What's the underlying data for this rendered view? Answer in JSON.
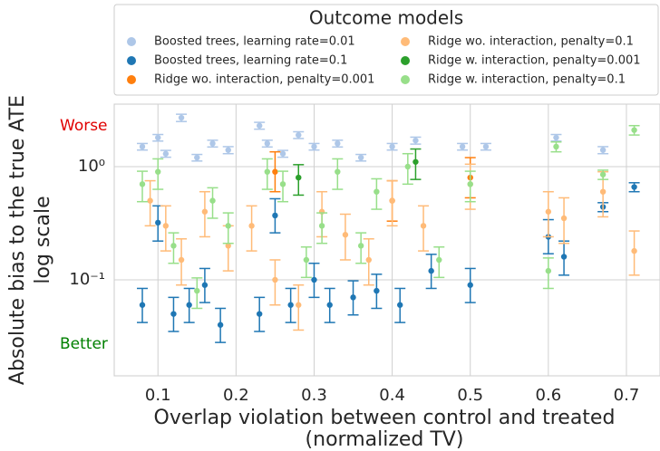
{
  "chart_data": {
    "type": "scatter",
    "legend_title": "Outcome models",
    "ylabel": [
      "Absolute bias to the true ATE",
      "log scale"
    ],
    "xlabel": [
      "Overlap violation between control and treated",
      "(normalized TV)"
    ],
    "annotations": [
      {
        "text": "Worse",
        "color": "#e00000"
      },
      {
        "text": "Better",
        "color": "#008000"
      }
    ],
    "log_y": true,
    "grid": true,
    "xlim": [
      0.044,
      0.743
    ],
    "ylim": [
      0.0142,
      3.56
    ],
    "xticks": [
      0.1,
      0.2,
      0.3,
      0.4,
      0.5,
      0.6,
      0.7
    ],
    "yticks": [
      {
        "value": 0.1,
        "label": "10⁻¹"
      },
      {
        "value": 1,
        "label": "10⁰"
      }
    ],
    "series": [
      {
        "name": "Boosted trees, learning rate=0.01",
        "color": "#aec7e8",
        "x": [
          0.08,
          0.1,
          0.11,
          0.13,
          0.15,
          0.17,
          0.19,
          0.23,
          0.24,
          0.26,
          0.28,
          0.3,
          0.33,
          0.36,
          0.4,
          0.43,
          0.49,
          0.52,
          0.61,
          0.67
        ],
        "values": [
          1.5,
          1.8,
          1.3,
          2.7,
          1.2,
          1.6,
          1.4,
          2.3,
          1.6,
          1.3,
          1.9,
          1.5,
          1.6,
          1.2,
          1.5,
          1.7,
          1.5,
          1.5,
          1.8,
          1.4
        ],
        "lower": [
          1.4,
          1.68,
          1.21,
          2.5,
          1.12,
          1.49,
          1.3,
          2.14,
          1.49,
          1.21,
          1.77,
          1.4,
          1.49,
          1.12,
          1.4,
          1.58,
          1.4,
          1.4,
          1.68,
          1.3
        ],
        "upper": [
          1.6,
          1.92,
          1.39,
          2.9,
          1.28,
          1.71,
          1.5,
          2.46,
          1.71,
          1.39,
          2.03,
          1.6,
          1.71,
          1.28,
          1.6,
          1.82,
          1.6,
          1.6,
          1.92,
          1.5
        ]
      },
      {
        "name": "Boosted trees, learning rate=0.1",
        "color": "#1f77b4",
        "x": [
          0.08,
          0.1,
          0.12,
          0.14,
          0.16,
          0.18,
          0.23,
          0.25,
          0.27,
          0.3,
          0.32,
          0.35,
          0.38,
          0.41,
          0.45,
          0.5,
          0.6,
          0.62,
          0.67,
          0.71
        ],
        "values": [
          0.06,
          0.32,
          0.05,
          0.06,
          0.09,
          0.04,
          0.05,
          0.37,
          0.06,
          0.1,
          0.06,
          0.07,
          0.08,
          0.06,
          0.12,
          0.09,
          0.24,
          0.16,
          0.44,
          0.66
        ],
        "lower": [
          0.042,
          0.22,
          0.035,
          0.042,
          0.063,
          0.028,
          0.035,
          0.26,
          0.042,
          0.07,
          0.042,
          0.049,
          0.056,
          0.042,
          0.084,
          0.063,
          0.17,
          0.11,
          0.4,
          0.6
        ],
        "upper": [
          0.084,
          0.45,
          0.07,
          0.084,
          0.126,
          0.056,
          0.07,
          0.52,
          0.084,
          0.14,
          0.084,
          0.098,
          0.112,
          0.084,
          0.168,
          0.126,
          0.34,
          0.22,
          0.48,
          0.72
        ]
      },
      {
        "name": "Ridge wo. interaction, penalty=0.001",
        "color": "#ff7f0e",
        "x": [
          0.25,
          0.4,
          0.5
        ],
        "values": [
          0.9,
          0.5,
          0.8
        ],
        "lower": [
          0.6,
          0.33,
          0.53
        ],
        "upper": [
          1.35,
          0.75,
          1.2
        ]
      },
      {
        "name": "Ridge wo. interaction, penalty=0.1",
        "color": "#ffbb78",
        "x": [
          0.09,
          0.11,
          0.13,
          0.16,
          0.19,
          0.22,
          0.25,
          0.28,
          0.31,
          0.34,
          0.37,
          0.4,
          0.44,
          0.5,
          0.6,
          0.62,
          0.67,
          0.71
        ],
        "values": [
          0.5,
          0.3,
          0.15,
          0.4,
          0.2,
          0.3,
          0.1,
          0.06,
          0.4,
          0.25,
          0.15,
          0.5,
          0.3,
          0.7,
          0.4,
          0.35,
          0.6,
          0.18
        ],
        "lower": [
          0.3,
          0.18,
          0.09,
          0.24,
          0.12,
          0.18,
          0.06,
          0.036,
          0.24,
          0.15,
          0.09,
          0.3,
          0.18,
          0.42,
          0.24,
          0.21,
          0.36,
          0.11
        ],
        "upper": [
          0.75,
          0.45,
          0.23,
          0.6,
          0.3,
          0.45,
          0.15,
          0.09,
          0.6,
          0.38,
          0.23,
          0.75,
          0.45,
          1.05,
          0.6,
          0.53,
          0.9,
          0.27
        ]
      },
      {
        "name": "Ridge w. interaction, penalty=0.001",
        "color": "#2ca02c",
        "x": [
          0.28,
          0.43
        ],
        "values": [
          0.8,
          1.1
        ],
        "lower": [
          0.56,
          0.77
        ],
        "upper": [
          1.04,
          1.43
        ]
      },
      {
        "name": "Ridge w. interaction, penalty=0.1",
        "color": "#98df8a",
        "x": [
          0.08,
          0.1,
          0.12,
          0.15,
          0.17,
          0.19,
          0.24,
          0.26,
          0.29,
          0.31,
          0.33,
          0.36,
          0.38,
          0.42,
          0.46,
          0.5,
          0.6,
          0.61,
          0.67,
          0.71
        ],
        "values": [
          0.7,
          0.9,
          0.2,
          0.08,
          0.5,
          0.3,
          0.9,
          0.7,
          0.15,
          0.3,
          0.9,
          0.2,
          0.6,
          1.0,
          0.15,
          0.7,
          0.12,
          1.5,
          0.85,
          2.1
        ],
        "lower": [
          0.49,
          0.63,
          0.14,
          0.056,
          0.35,
          0.21,
          0.63,
          0.49,
          0.105,
          0.21,
          0.63,
          0.14,
          0.42,
          0.7,
          0.105,
          0.49,
          0.084,
          1.35,
          0.77,
          1.9
        ],
        "upper": [
          0.91,
          1.17,
          0.26,
          0.104,
          0.65,
          0.39,
          1.17,
          0.91,
          0.195,
          0.39,
          1.17,
          0.26,
          0.78,
          1.3,
          0.195,
          0.91,
          0.156,
          1.65,
          0.93,
          2.3
        ]
      }
    ]
  }
}
